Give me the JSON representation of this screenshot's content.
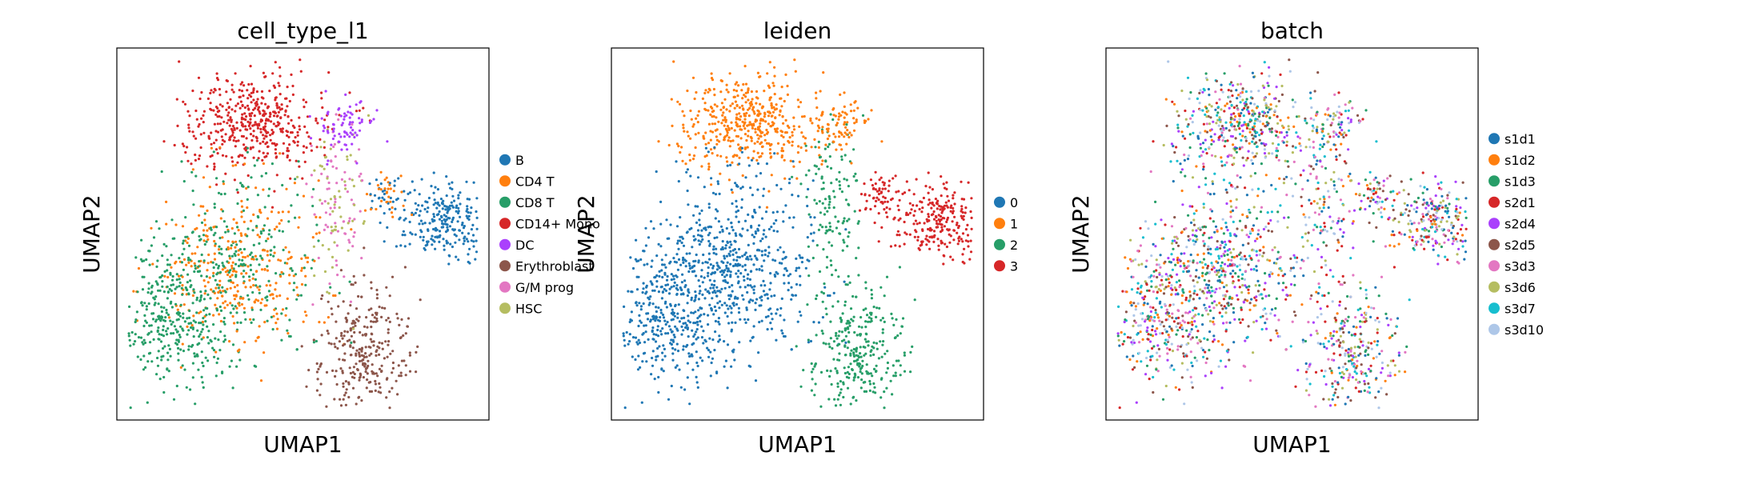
{
  "chart_data": [
    {
      "type": "scatter",
      "title": "cell_type_l1",
      "xlabel": "UMAP1",
      "ylabel": "UMAP2",
      "legend_position": "right",
      "categories": [
        {
          "name": "B",
          "color": "#1f77b4"
        },
        {
          "name": "CD4 T",
          "color": "#ff7f0e"
        },
        {
          "name": "CD8 T",
          "color": "#279e68"
        },
        {
          "name": "CD14+ Mono",
          "color": "#d62728"
        },
        {
          "name": "DC",
          "color": "#aa40fc"
        },
        {
          "name": "Erythroblast",
          "color": "#8c564b"
        },
        {
          "name": "G/M prog",
          "color": "#e377c2"
        },
        {
          "name": "HSC",
          "color": "#b5bd61"
        }
      ]
    },
    {
      "type": "scatter",
      "title": "leiden",
      "xlabel": "UMAP1",
      "ylabel": "UMAP2",
      "legend_position": "right",
      "categories": [
        {
          "name": "0",
          "color": "#1f77b4"
        },
        {
          "name": "1",
          "color": "#ff7f0e"
        },
        {
          "name": "2",
          "color": "#279e68"
        },
        {
          "name": "3",
          "color": "#d62728"
        }
      ]
    },
    {
      "type": "scatter",
      "title": "batch",
      "xlabel": "UMAP1",
      "ylabel": "UMAP2",
      "legend_position": "right",
      "categories": [
        {
          "name": "s1d1",
          "color": "#1f77b4"
        },
        {
          "name": "s1d2",
          "color": "#ff7f0e"
        },
        {
          "name": "s1d3",
          "color": "#279e68"
        },
        {
          "name": "s2d1",
          "color": "#d62728"
        },
        {
          "name": "s2d4",
          "color": "#aa40fc"
        },
        {
          "name": "s2d5",
          "color": "#8c564b"
        },
        {
          "name": "s3d3",
          "color": "#e377c2"
        },
        {
          "name": "s3d6",
          "color": "#b5bd61"
        },
        {
          "name": "s3d7",
          "color": "#17becf"
        },
        {
          "name": "s3d10",
          "color": "#aec7e8"
        }
      ]
    }
  ]
}
